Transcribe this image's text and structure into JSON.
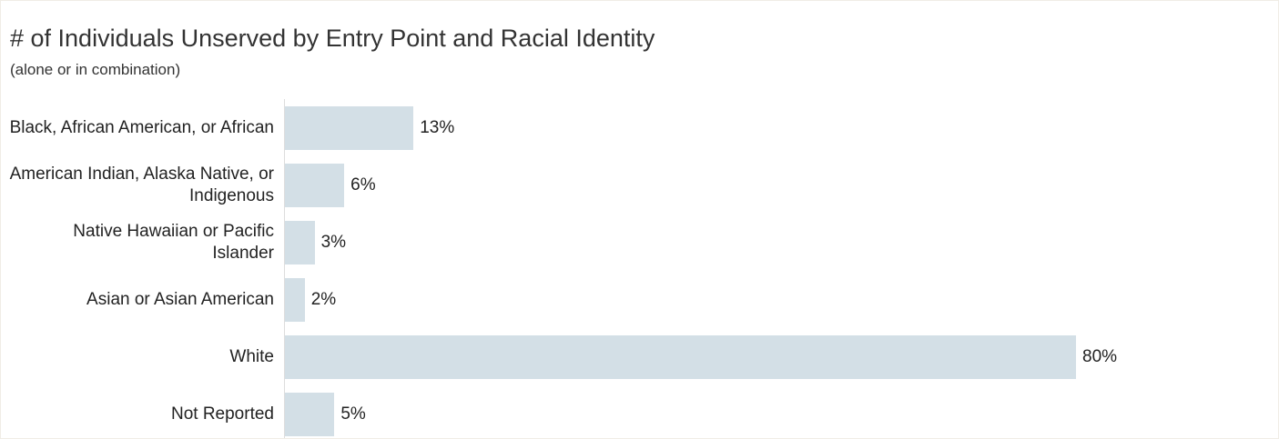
{
  "chart_data": {
    "type": "bar",
    "orientation": "horizontal",
    "title": "# of Individuals Unserved by Entry Point and Racial Identity",
    "subtitle": "(alone or in combination)",
    "categories": [
      "Black, African American, or African",
      "American Indian, Alaska Native, or Indigenous",
      "Native Hawaiian or Pacific Islander",
      "Asian or Asian American",
      "White",
      "Not Reported"
    ],
    "values": [
      13,
      6,
      3,
      2,
      80,
      5
    ],
    "value_labels": [
      "13%",
      "6%",
      "3%",
      "2%",
      "80%",
      "5%"
    ],
    "color": "#d3dfe6"
  }
}
